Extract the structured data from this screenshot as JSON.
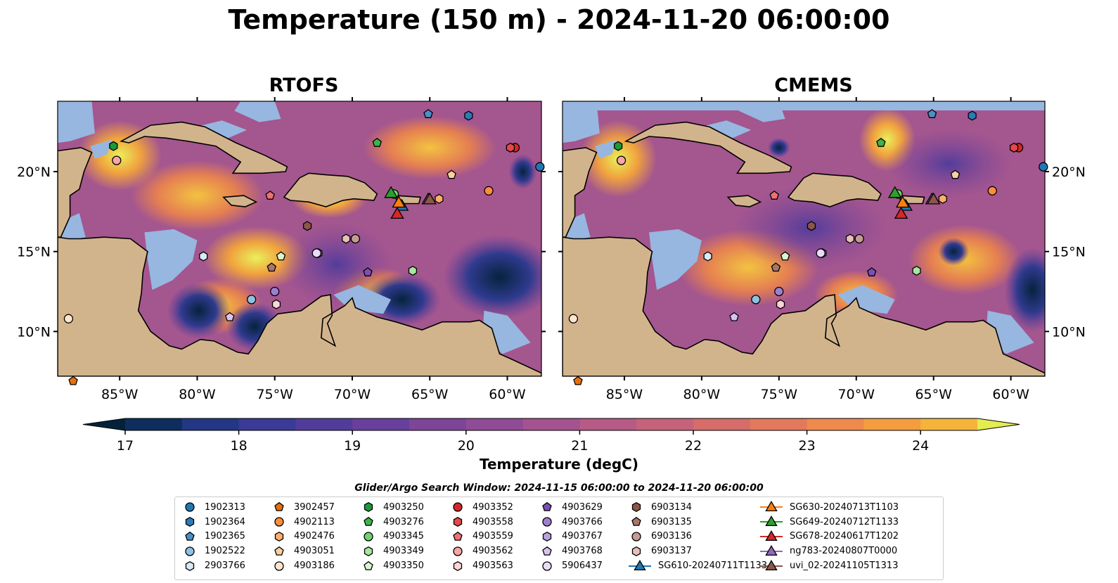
{
  "title": "Temperature (150 m) - 2024-11-20 06:00:00",
  "panels": [
    {
      "id": "rtofs",
      "title": "RTOFS"
    },
    {
      "id": "cmems",
      "title": "CMEMS"
    }
  ],
  "colorbar": {
    "label": "Temperature (degC)",
    "min": 17,
    "max": 24.5,
    "step": 0.5,
    "ticks": [
      17,
      18,
      19,
      20,
      21,
      22,
      23,
      24
    ],
    "tick_labels": [
      "17",
      "18",
      "19",
      "20",
      "21",
      "22",
      "23",
      "24"
    ],
    "colors": [
      "#03223a",
      "#0d2e5e",
      "#233784",
      "#3a3a97",
      "#523c9b",
      "#683f9c",
      "#7d4598",
      "#8f4b96",
      "#a45290",
      "#b65a86",
      "#c6637b",
      "#d66d6b",
      "#e3795c",
      "#ed8a4c",
      "#f49d3f",
      "#f5b33a",
      "#ecc83e",
      "#e3ed52"
    ],
    "extend": "both"
  },
  "search_window": "Glider/Argo Search Window: 2024-11-15 06:00:00 to 2024-11-20 06:00:00",
  "chart_data": {
    "type": "map",
    "lon_range": [
      -89,
      -57.8
    ],
    "lat_range": [
      7.2,
      24.4
    ],
    "lon_ticks": [
      -85,
      -80,
      -75,
      -70,
      -65,
      -60
    ],
    "lon_tick_labels": [
      "85°W",
      "80°W",
      "75°W",
      "70°W",
      "65°W",
      "60°W"
    ],
    "lat_ticks": [
      10,
      15,
      20
    ],
    "lat_tick_labels": [
      "10°N",
      "15°N",
      "20°N"
    ],
    "platforms": [
      {
        "name": "1902313",
        "marker": "circle",
        "color": "#1f77b4",
        "lon": -57.9,
        "lat": 20.3
      },
      {
        "name": "1902364",
        "marker": "hexagon",
        "color": "#2b7bba",
        "lon": -62.5,
        "lat": 23.5
      },
      {
        "name": "1902365",
        "marker": "pentagon",
        "color": "#4a90c8",
        "lon": -65.1,
        "lat": 23.6
      },
      {
        "name": "1902522",
        "marker": "circle",
        "color": "#8fc1e3",
        "lon": -76.5,
        "lat": 12.0
      },
      {
        "name": "2903766",
        "marker": "hexagon",
        "color": "#d7eaf6",
        "lon": -79.6,
        "lat": 14.7
      },
      {
        "name": "3902457",
        "marker": "pentagon",
        "color": "#e6700c",
        "lon": -88.0,
        "lat": 6.9
      },
      {
        "name": "4902113",
        "marker": "circle",
        "color": "#fd8d3c",
        "lon": -61.2,
        "lat": 18.8
      },
      {
        "name": "4902476",
        "marker": "hexagon",
        "color": "#fdae6b",
        "lon": -64.4,
        "lat": 18.3
      },
      {
        "name": "4903051",
        "marker": "pentagon",
        "color": "#fdd0a2",
        "lon": -63.6,
        "lat": 19.8
      },
      {
        "name": "4903186",
        "marker": "circle",
        "color": "#fee6ce",
        "lon": -88.3,
        "lat": 10.8
      },
      {
        "name": "4903250",
        "marker": "hexagon",
        "color": "#1a9a3a",
        "lon": -85.4,
        "lat": 21.6
      },
      {
        "name": "4903276",
        "marker": "pentagon",
        "color": "#3cb54a",
        "lon": -68.4,
        "lat": 21.8
      },
      {
        "name": "4903345",
        "marker": "circle",
        "color": "#6fd36f",
        "lon": -67.3,
        "lat": 18.6
      },
      {
        "name": "4903349",
        "marker": "hexagon",
        "color": "#a6e6a0",
        "lon": -66.1,
        "lat": 13.8
      },
      {
        "name": "4903350",
        "marker": "pentagon",
        "color": "#d7f5cf",
        "lon": -74.6,
        "lat": 14.7
      },
      {
        "name": "4903352",
        "marker": "circle",
        "color": "#d62728",
        "lon": -59.5,
        "lat": 21.5
      },
      {
        "name": "4903558",
        "marker": "hexagon",
        "color": "#e5474a",
        "lon": -59.8,
        "lat": 21.5
      },
      {
        "name": "4903559",
        "marker": "pentagon",
        "color": "#f07070",
        "lon": -75.3,
        "lat": 18.5
      },
      {
        "name": "4903562",
        "marker": "circle",
        "color": "#f7a5a5",
        "lon": -85.2,
        "lat": 20.7
      },
      {
        "name": "4903563",
        "marker": "hexagon",
        "color": "#fcd5d5",
        "lon": -74.9,
        "lat": 11.7
      },
      {
        "name": "4903629",
        "marker": "pentagon",
        "color": "#7b4fb8",
        "lon": -69.0,
        "lat": 13.7
      },
      {
        "name": "4903766",
        "marker": "circle",
        "color": "#9d7fd0",
        "lon": -75.0,
        "lat": 12.5
      },
      {
        "name": "4903767",
        "marker": "hexagon",
        "color": "#b9a3dd",
        "lon": -72.2,
        "lat": 14.9
      },
      {
        "name": "4903768",
        "marker": "pentagon",
        "color": "#d5c5ee",
        "lon": -77.9,
        "lat": 10.9
      },
      {
        "name": "5906437",
        "marker": "circle",
        "color": "#e8dcf7",
        "lon": -72.3,
        "lat": 14.9
      },
      {
        "name": "6903134",
        "marker": "hexagon",
        "color": "#8c564b",
        "lon": -72.9,
        "lat": 16.6
      },
      {
        "name": "6903135",
        "marker": "pentagon",
        "color": "#a9756a",
        "lon": -75.2,
        "lat": 14.0
      },
      {
        "name": "6903136",
        "marker": "circle",
        "color": "#c49c94",
        "lon": -69.8,
        "lat": 15.8
      },
      {
        "name": "6903137",
        "marker": "hexagon",
        "color": "#e7c0b8",
        "lon": -70.4,
        "lat": 15.8
      },
      {
        "name": "SG610-20240711T1133",
        "marker": "triangle",
        "line": true,
        "color": "#1f77b4",
        "lon": -66.8,
        "lat": 17.8
      },
      {
        "name": "SG630-20240713T1103",
        "marker": "triangle",
        "line": true,
        "color": "#ff7f0e",
        "lon": -67.0,
        "lat": 18.0
      },
      {
        "name": "SG649-20240712T1133",
        "marker": "triangle",
        "line": true,
        "color": "#2ca02c",
        "lon": -67.5,
        "lat": 18.6
      },
      {
        "name": "SG678-20240617T1202",
        "marker": "triangle",
        "line": true,
        "color": "#d62728",
        "lon": -67.1,
        "lat": 17.3
      },
      {
        "name": "ng783-20240807T0000",
        "marker": "triangle",
        "line": true,
        "color": "#9467bd",
        "lon": -65.1,
        "lat": 18.2
      },
      {
        "name": "uvi_02-20241105T1313",
        "marker": "triangle",
        "line": true,
        "color": "#8c564b",
        "lon": -65.0,
        "lat": 18.2
      }
    ]
  }
}
